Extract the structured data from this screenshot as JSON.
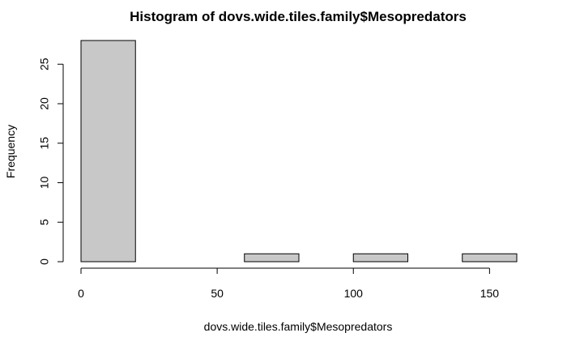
{
  "chart_data": {
    "type": "bar",
    "title": "Histogram of dovs.wide.tiles.family$Mesopredators",
    "xlabel": "dovs.wide.tiles.family$Mesopredators",
    "ylabel": "Frequency",
    "bins": [
      {
        "from": 0,
        "to": 20,
        "count": 28
      },
      {
        "from": 20,
        "to": 40,
        "count": 0
      },
      {
        "from": 40,
        "to": 60,
        "count": 0
      },
      {
        "from": 60,
        "to": 80,
        "count": 1
      },
      {
        "from": 80,
        "to": 100,
        "count": 0
      },
      {
        "from": 100,
        "to": 120,
        "count": 1
      },
      {
        "from": 120,
        "to": 140,
        "count": 0
      },
      {
        "from": 140,
        "to": 160,
        "count": 1
      }
    ],
    "xlim": [
      0,
      160
    ],
    "ylim": [
      0,
      28
    ],
    "x_ticks": [
      "0",
      "50",
      "100",
      "150"
    ],
    "y_ticks": [
      "0",
      "5",
      "10",
      "15",
      "20",
      "25"
    ],
    "grid": false,
    "colors": {
      "bar_fill": "#c8c8c8",
      "bar_stroke": "#000000"
    }
  }
}
